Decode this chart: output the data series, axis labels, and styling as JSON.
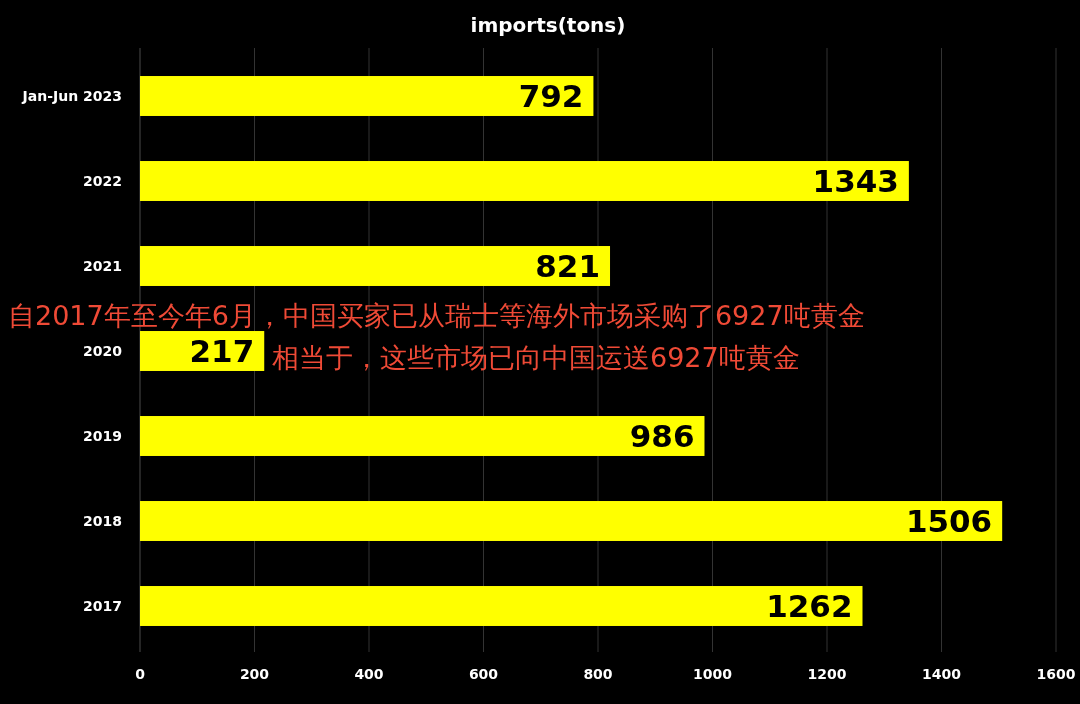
{
  "chart_data": {
    "type": "bar",
    "orientation": "horizontal",
    "title": "imports(tons)",
    "categories": [
      "Jan-Jun 2023",
      "2022",
      "2021",
      "2020",
      "2019",
      "2018",
      "2017"
    ],
    "values": [
      792,
      1343,
      821,
      217,
      986,
      1506,
      1262
    ],
    "color": "#ffff00",
    "xlim": [
      0,
      1600
    ],
    "xticks": [
      0,
      200,
      400,
      600,
      800,
      1000,
      1200,
      1400,
      1600
    ],
    "grid": "x",
    "data_labels": true,
    "annotations": [
      "自2017年至今年6月，中国买家已从瑞士等海外市场采购了6927吨黄金",
      "相当于，这些市场已向中国运送6927吨黄金"
    ]
  }
}
